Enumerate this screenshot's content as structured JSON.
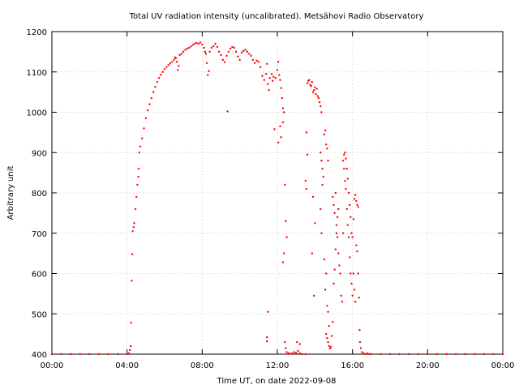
{
  "chart_data": {
    "type": "scatter",
    "title": "Total UV radiation intensity (uncalibrated). Metsähovi Radio Observatory",
    "xlabel": "Time UT, on date 2022-09-08",
    "ylabel": "Arbitrary unit",
    "xlim": [
      0,
      24
    ],
    "ylim": [
      400,
      1200
    ],
    "x_unit": "hours UT",
    "xticks": [
      {
        "value": 0,
        "label": "00:00"
      },
      {
        "value": 4,
        "label": "04:00"
      },
      {
        "value": 8,
        "label": "08:00"
      },
      {
        "value": 12,
        "label": "12:00"
      },
      {
        "value": 16,
        "label": "16:00"
      },
      {
        "value": 20,
        "label": "20:00"
      },
      {
        "value": 24,
        "label": "00:00"
      }
    ],
    "yticks": [
      400,
      500,
      600,
      700,
      800,
      900,
      1000,
      1100,
      1200
    ],
    "grid": true,
    "grid_color": "#cccccc",
    "marker_color": "#ff0000",
    "series": [
      {
        "points": [
          [
            0.0,
            400
          ],
          [
            0.5,
            400
          ],
          [
            1.0,
            400
          ],
          [
            1.5,
            400
          ],
          [
            2.0,
            400
          ],
          [
            2.5,
            400
          ],
          [
            3.0,
            400
          ],
          [
            3.5,
            400
          ],
          [
            4.0,
            400
          ],
          [
            4.1,
            402
          ],
          [
            4.15,
            410
          ],
          [
            4.2,
            420
          ],
          [
            4.22,
            478
          ],
          [
            4.25,
            582
          ],
          [
            4.28,
            648
          ],
          [
            4.3,
            705
          ],
          [
            4.35,
            715
          ],
          [
            4.38,
            725
          ],
          [
            4.45,
            760
          ],
          [
            4.5,
            790
          ],
          [
            4.55,
            820
          ],
          [
            4.6,
            840
          ],
          [
            4.62,
            860
          ],
          [
            4.65,
            900
          ],
          [
            4.7,
            915
          ],
          [
            4.8,
            935
          ],
          [
            4.9,
            960
          ],
          [
            5.0,
            985
          ],
          [
            5.1,
            1005
          ],
          [
            5.2,
            1020
          ],
          [
            5.3,
            1035
          ],
          [
            5.4,
            1050
          ],
          [
            5.5,
            1063
          ],
          [
            5.6,
            1075
          ],
          [
            5.7,
            1085
          ],
          [
            5.8,
            1093
          ],
          [
            5.9,
            1100
          ],
          [
            6.0,
            1107
          ],
          [
            6.1,
            1112
          ],
          [
            6.2,
            1117
          ],
          [
            6.3,
            1121
          ],
          [
            6.4,
            1125
          ],
          [
            6.5,
            1130
          ],
          [
            6.55,
            1136
          ],
          [
            6.6,
            1134
          ],
          [
            6.65,
            1125
          ],
          [
            6.7,
            1105
          ],
          [
            6.75,
            1115
          ],
          [
            6.8,
            1142
          ],
          [
            6.9,
            1145
          ],
          [
            7.0,
            1150
          ],
          [
            7.1,
            1155
          ],
          [
            7.2,
            1158
          ],
          [
            7.3,
            1160
          ],
          [
            7.4,
            1163
          ],
          [
            7.5,
            1167
          ],
          [
            7.6,
            1170
          ],
          [
            7.7,
            1172
          ],
          [
            7.8,
            1170
          ],
          [
            7.9,
            1173
          ],
          [
            8.0,
            1168
          ],
          [
            8.1,
            1160
          ],
          [
            8.15,
            1150
          ],
          [
            8.2,
            1145
          ],
          [
            8.25,
            1122
          ],
          [
            8.3,
            1092
          ],
          [
            8.35,
            1102
          ],
          [
            8.4,
            1150
          ],
          [
            8.5,
            1160
          ],
          [
            8.6,
            1164
          ],
          [
            8.7,
            1170
          ],
          [
            8.8,
            1162
          ],
          [
            8.9,
            1150
          ],
          [
            9.0,
            1142
          ],
          [
            9.1,
            1130
          ],
          [
            9.2,
            1124
          ],
          [
            9.3,
            1140
          ],
          [
            9.35,
            1002
          ],
          [
            9.4,
            1150
          ],
          [
            9.5,
            1158
          ],
          [
            9.6,
            1162
          ],
          [
            9.7,
            1160
          ],
          [
            9.8,
            1150
          ],
          [
            9.9,
            1138
          ],
          [
            10.0,
            1130
          ],
          [
            10.1,
            1148
          ],
          [
            10.2,
            1152
          ],
          [
            10.3,
            1155
          ],
          [
            10.4,
            1150
          ],
          [
            10.5,
            1145
          ],
          [
            10.6,
            1140
          ],
          [
            10.7,
            1130
          ],
          [
            10.8,
            1122
          ],
          [
            10.9,
            1128
          ],
          [
            11.0,
            1125
          ],
          [
            11.1,
            1112
          ],
          [
            11.2,
            1090
          ],
          [
            11.3,
            1080
          ],
          [
            11.4,
            1095
          ],
          [
            11.45,
            1120
          ],
          [
            11.5,
            1070
          ],
          [
            11.55,
            1055
          ],
          [
            11.6,
            1085
          ],
          [
            11.7,
            1095
          ],
          [
            11.75,
            1078
          ],
          [
            11.8,
            1088
          ],
          [
            11.9,
            1085
          ],
          [
            12.0,
            1105
          ],
          [
            12.05,
            1125
          ],
          [
            12.1,
            1092
          ],
          [
            12.15,
            1080
          ],
          [
            12.2,
            1060
          ],
          [
            12.25,
            1035
          ],
          [
            12.3,
            1010
          ],
          [
            12.35,
            1000
          ],
          [
            11.45,
            442
          ],
          [
            11.45,
            432
          ],
          [
            11.5,
            505
          ],
          [
            11.85,
            958
          ],
          [
            12.05,
            925
          ],
          [
            12.15,
            965
          ],
          [
            12.2,
            938
          ],
          [
            12.3,
            975
          ],
          [
            12.4,
            820
          ],
          [
            12.45,
            730
          ],
          [
            12.5,
            690
          ],
          [
            12.3,
            628
          ],
          [
            12.35,
            650
          ],
          [
            12.4,
            430
          ],
          [
            12.45,
            415
          ],
          [
            12.5,
            405
          ],
          [
            12.6,
            402
          ],
          [
            12.7,
            401
          ],
          [
            12.8,
            402
          ],
          [
            12.9,
            405
          ],
          [
            13.0,
            403
          ],
          [
            13.1,
            408
          ],
          [
            13.2,
            402
          ],
          [
            13.05,
            430
          ],
          [
            13.2,
            425
          ],
          [
            13.3,
            400
          ],
          [
            13.5,
            400
          ],
          [
            13.6,
            1072
          ],
          [
            13.65,
            1078
          ],
          [
            13.7,
            1080
          ],
          [
            13.75,
            1068
          ],
          [
            13.8,
            1065
          ],
          [
            13.85,
            1075
          ],
          [
            13.9,
            1050
          ],
          [
            13.95,
            1055
          ],
          [
            14.0,
            1062
          ],
          [
            14.05,
            1045
          ],
          [
            14.1,
            1058
          ],
          [
            14.15,
            1040
          ],
          [
            14.2,
            1035
          ],
          [
            14.25,
            1025
          ],
          [
            14.3,
            1015
          ],
          [
            14.35,
            1000
          ],
          [
            13.55,
            950
          ],
          [
            13.6,
            895
          ],
          [
            13.5,
            830
          ],
          [
            13.55,
            810
          ],
          [
            13.9,
            790
          ],
          [
            14.0,
            725
          ],
          [
            13.85,
            650
          ],
          [
            13.95,
            545
          ],
          [
            14.3,
            900
          ],
          [
            14.35,
            880
          ],
          [
            14.4,
            860
          ],
          [
            14.45,
            840
          ],
          [
            14.5,
            945
          ],
          [
            14.55,
            955
          ],
          [
            14.6,
            920
          ],
          [
            14.65,
            910
          ],
          [
            14.7,
            880
          ],
          [
            14.4,
            820
          ],
          [
            14.3,
            760
          ],
          [
            14.35,
            700
          ],
          [
            14.5,
            635
          ],
          [
            14.6,
            600
          ],
          [
            14.55,
            560
          ],
          [
            14.65,
            520
          ],
          [
            14.7,
            505
          ],
          [
            14.75,
            470
          ],
          [
            14.6,
            450
          ],
          [
            14.65,
            440
          ],
          [
            14.7,
            430
          ],
          [
            14.75,
            420
          ],
          [
            14.8,
            414
          ],
          [
            14.85,
            418
          ],
          [
            14.9,
            445
          ],
          [
            14.95,
            480
          ],
          [
            15.0,
            575
          ],
          [
            15.05,
            610
          ],
          [
            15.1,
            660
          ],
          [
            15.15,
            700
          ],
          [
            15.2,
            740
          ],
          [
            15.25,
            760
          ],
          [
            14.95,
            790
          ],
          [
            15.0,
            770
          ],
          [
            15.1,
            800
          ],
          [
            15.05,
            750
          ],
          [
            15.15,
            720
          ],
          [
            15.2,
            690
          ],
          [
            15.25,
            650
          ],
          [
            15.3,
            620
          ],
          [
            15.35,
            600
          ],
          [
            15.4,
            545
          ],
          [
            15.45,
            530
          ],
          [
            15.5,
            700
          ],
          [
            15.5,
            880
          ],
          [
            15.55,
            895
          ],
          [
            15.6,
            900
          ],
          [
            15.65,
            885
          ],
          [
            15.7,
            860
          ],
          [
            15.75,
            835
          ],
          [
            15.8,
            800
          ],
          [
            15.85,
            770
          ],
          [
            15.9,
            740
          ],
          [
            15.95,
            700
          ],
          [
            15.55,
            860
          ],
          [
            15.6,
            830
          ],
          [
            15.65,
            810
          ],
          [
            15.7,
            760
          ],
          [
            15.75,
            720
          ],
          [
            15.8,
            690
          ],
          [
            15.85,
            640
          ],
          [
            15.9,
            600
          ],
          [
            15.95,
            575
          ],
          [
            16.0,
            545
          ],
          [
            16.0,
            690
          ],
          [
            16.05,
            735
          ],
          [
            16.1,
            785
          ],
          [
            16.15,
            795
          ],
          [
            16.2,
            780
          ],
          [
            16.25,
            770
          ],
          [
            16.3,
            765
          ],
          [
            16.05,
            600
          ],
          [
            16.1,
            560
          ],
          [
            16.15,
            530
          ],
          [
            16.2,
            670
          ],
          [
            16.25,
            655
          ],
          [
            16.3,
            600
          ],
          [
            16.35,
            540
          ],
          [
            16.38,
            460
          ],
          [
            16.4,
            430
          ],
          [
            16.45,
            415
          ],
          [
            16.5,
            405
          ],
          [
            16.6,
            402
          ],
          [
            16.7,
            400
          ],
          [
            16.8,
            402
          ],
          [
            16.9,
            400
          ],
          [
            17.0,
            400
          ],
          [
            17.5,
            400
          ],
          [
            18.0,
            400
          ],
          [
            18.5,
            400
          ],
          [
            19.0,
            400
          ],
          [
            19.5,
            400
          ],
          [
            20.0,
            400
          ],
          [
            20.5,
            400
          ],
          [
            21.0,
            400
          ],
          [
            21.5,
            400
          ],
          [
            22.0,
            400
          ],
          [
            22.5,
            400
          ],
          [
            23.0,
            400
          ],
          [
            23.5,
            400
          ],
          [
            24.0,
            400
          ]
        ]
      }
    ]
  }
}
